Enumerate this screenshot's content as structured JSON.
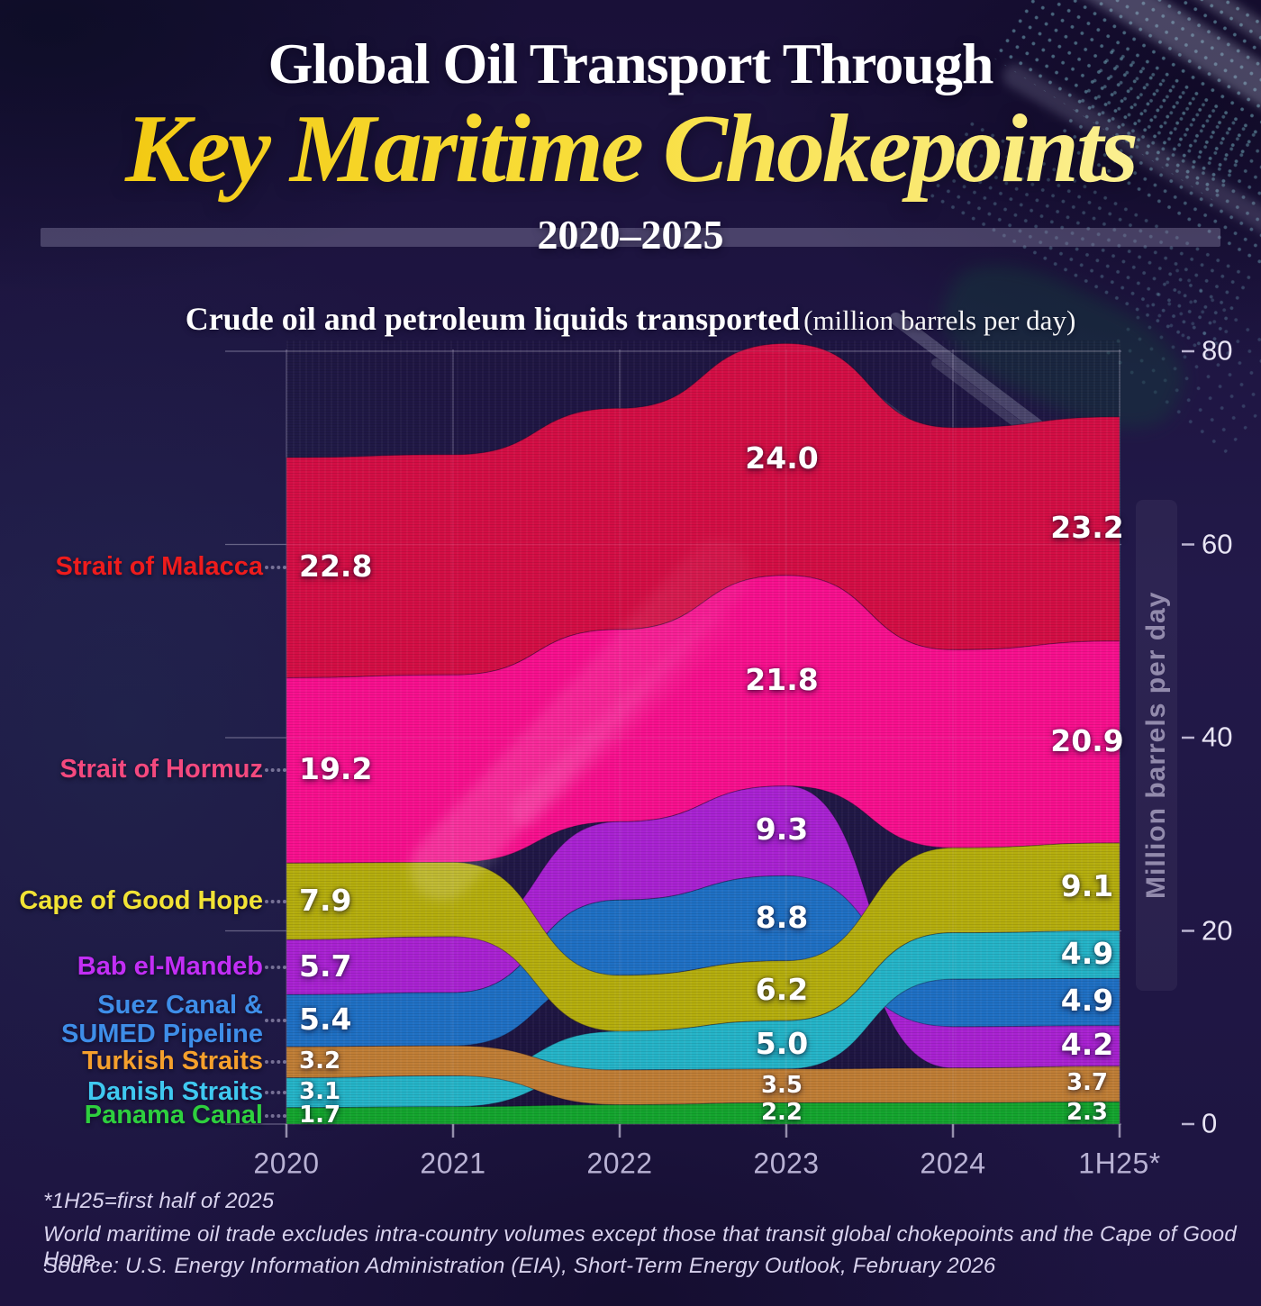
{
  "header": {
    "title_line1": "Global Oil Transport Through",
    "title_line2": "Key Maritime Chokepoints",
    "title_years": "2020–2025",
    "subtitle_bold": "Crude oil and petroleum liquids transported",
    "subtitle_note": "(million barrels per day)"
  },
  "chart_data": {
    "type": "area",
    "title": "Crude oil and petroleum liquids transported (million barrels per day)",
    "x_categories": [
      "2020",
      "2021",
      "2022",
      "2023",
      "2024",
      "1H25*"
    ],
    "x_with_printed_values": [
      "2020",
      "2023",
      "1H25*"
    ],
    "estimated_x": [
      "2021",
      "2022",
      "2024"
    ],
    "ylabel": "Million barrels per day",
    "ylim": [
      0,
      80
    ],
    "yticks": [
      0,
      20,
      40,
      60,
      80
    ],
    "grid": true,
    "series": [
      {
        "id": "malacca",
        "label_lines": [
          "Strait of Malacca"
        ],
        "label_color": "#ee1c1c",
        "band_color": "#d40e45",
        "values": [
          22.8,
          22.8,
          22.9,
          24.0,
          23.0,
          23.2
        ],
        "display_values": [
          "22.8",
          null,
          null,
          "24.0",
          null,
          "23.2"
        ]
      },
      {
        "id": "hormuz",
        "label_lines": [
          "Strait of Hormuz"
        ],
        "label_color": "#f4497e",
        "band_color": "#f8108e",
        "values": [
          19.2,
          19.4,
          19.9,
          21.8,
          20.5,
          20.9
        ],
        "display_values": [
          "19.2",
          null,
          null,
          "21.8",
          null,
          "20.9"
        ]
      },
      {
        "id": "cape",
        "label_lines": [
          "Cape of Good Hope"
        ],
        "label_color": "#f2e335",
        "band_color": "#b5ae0e",
        "values": [
          7.9,
          7.7,
          5.8,
          6.2,
          8.8,
          9.1
        ],
        "display_values": [
          "7.9",
          null,
          null,
          "6.2",
          null,
          "9.1"
        ]
      },
      {
        "id": "bab",
        "label_lines": [
          "Bab el-Mandeb"
        ],
        "label_color": "#c22ef5",
        "band_color": "#a922d2",
        "values": [
          5.7,
          5.8,
          8.1,
          9.3,
          4.3,
          4.2
        ],
        "display_values": [
          "5.7",
          null,
          null,
          "9.3",
          null,
          "4.2"
        ]
      },
      {
        "id": "suez",
        "label_lines": [
          "Suez Canal &",
          "SUMED Pipeline"
        ],
        "label_color": "#3e8ee8",
        "band_color": "#1f70c4",
        "values": [
          5.4,
          5.5,
          7.8,
          8.8,
          4.9,
          4.9
        ],
        "display_values": [
          "5.4",
          null,
          null,
          "8.8",
          null,
          "4.9"
        ]
      },
      {
        "id": "turkish",
        "label_lines": [
          "Turkish Straits"
        ],
        "label_color": "#f5a02c",
        "band_color": "#c07e36",
        "values": [
          3.2,
          3.1,
          3.6,
          3.5,
          3.6,
          3.7
        ],
        "display_values": [
          "3.2",
          null,
          null,
          "3.5",
          null,
          "3.7"
        ]
      },
      {
        "id": "danish",
        "label_lines": [
          "Danish Straits"
        ],
        "label_color": "#3fc9f0",
        "band_color": "#25b4c8",
        "values": [
          3.1,
          3.2,
          4.0,
          5.0,
          4.8,
          4.9
        ],
        "display_values": [
          "3.1",
          null,
          null,
          "5.0",
          null,
          "4.9"
        ]
      },
      {
        "id": "panama",
        "label_lines": [
          "Panama Canal"
        ],
        "label_color": "#2ecf3e",
        "band_color": "#14a52e",
        "values": [
          1.7,
          1.8,
          2.0,
          2.2,
          2.2,
          2.3
        ],
        "display_values": [
          "1.7",
          null,
          null,
          "2.2",
          null,
          "2.3"
        ]
      }
    ],
    "stack_order_top_to_bottom_by_x": [
      [
        "malacca",
        "hormuz",
        "cape",
        "bab",
        "suez",
        "turkish",
        "danish",
        "panama"
      ],
      [
        "malacca",
        "hormuz",
        "cape",
        "bab",
        "suez",
        "turkish",
        "danish",
        "panama"
      ],
      [
        "malacca",
        "hormuz",
        "bab",
        "suez",
        "cape",
        "danish",
        "turkish",
        "panama"
      ],
      [
        "malacca",
        "hormuz",
        "bab",
        "suez",
        "cape",
        "danish",
        "turkish",
        "panama"
      ],
      [
        "malacca",
        "hormuz",
        "cape",
        "danish",
        "suez",
        "bab",
        "turkish",
        "panama"
      ],
      [
        "malacca",
        "hormuz",
        "cape",
        "danish",
        "suez",
        "bab",
        "turkish",
        "panama"
      ]
    ],
    "draw_order": [
      "malacca",
      "hormuz",
      "bab",
      "suez",
      "cape",
      "danish",
      "turkish",
      "panama"
    ]
  },
  "footer": {
    "note1": "*1H25=first half of 2025",
    "note2": "World maritime oil trade excludes intra-country volumes except those that transit global chokepoints and the Cape of Good Hope.",
    "source": "Source: U.S. Energy Information Administration (EIA), Short-Term Energy Outlook, February 2026"
  }
}
